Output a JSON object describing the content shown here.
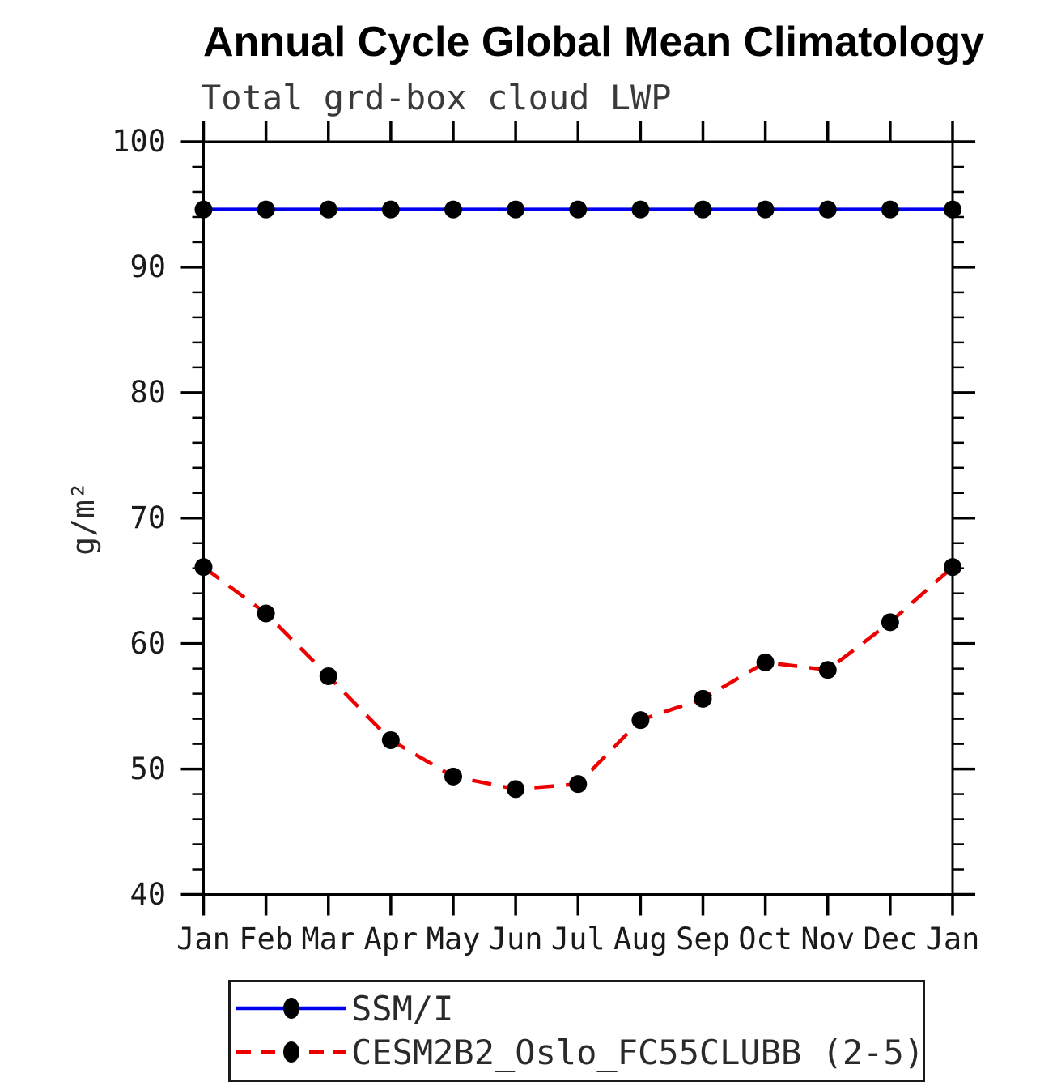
{
  "chart_data": {
    "type": "line",
    "title": "Annual Cycle Global Mean Climatology",
    "subtitle": "Total grd-box cloud LWP",
    "xlabel": "",
    "ylabel": "g/m²",
    "categories": [
      "Jan",
      "Feb",
      "Mar",
      "Apr",
      "May",
      "Jun",
      "Jul",
      "Aug",
      "Sep",
      "Oct",
      "Nov",
      "Dec",
      "Jan"
    ],
    "ylim": [
      40,
      100
    ],
    "ytick_major": [
      40,
      50,
      60,
      70,
      80,
      90,
      100
    ],
    "ytick_minor_step": 2,
    "grid": false,
    "legend_position": "bottom",
    "frame_color": "#000000",
    "marker_color": "#000000",
    "series": [
      {
        "name": "SSM/I",
        "color": "#0000ee",
        "style": "solid",
        "marker": "circle",
        "values": [
          94.6,
          94.6,
          94.6,
          94.6,
          94.6,
          94.6,
          94.6,
          94.6,
          94.6,
          94.6,
          94.6,
          94.6,
          94.6
        ]
      },
      {
        "name": "CESM2B2_Oslo_FC55CLUBB (2-5)",
        "color": "#ee0000",
        "style": "dashed",
        "marker": "circle",
        "values": [
          66.1,
          62.4,
          57.4,
          52.3,
          49.4,
          48.4,
          48.8,
          53.9,
          55.6,
          58.5,
          57.9,
          61.7,
          66.1
        ]
      }
    ]
  }
}
